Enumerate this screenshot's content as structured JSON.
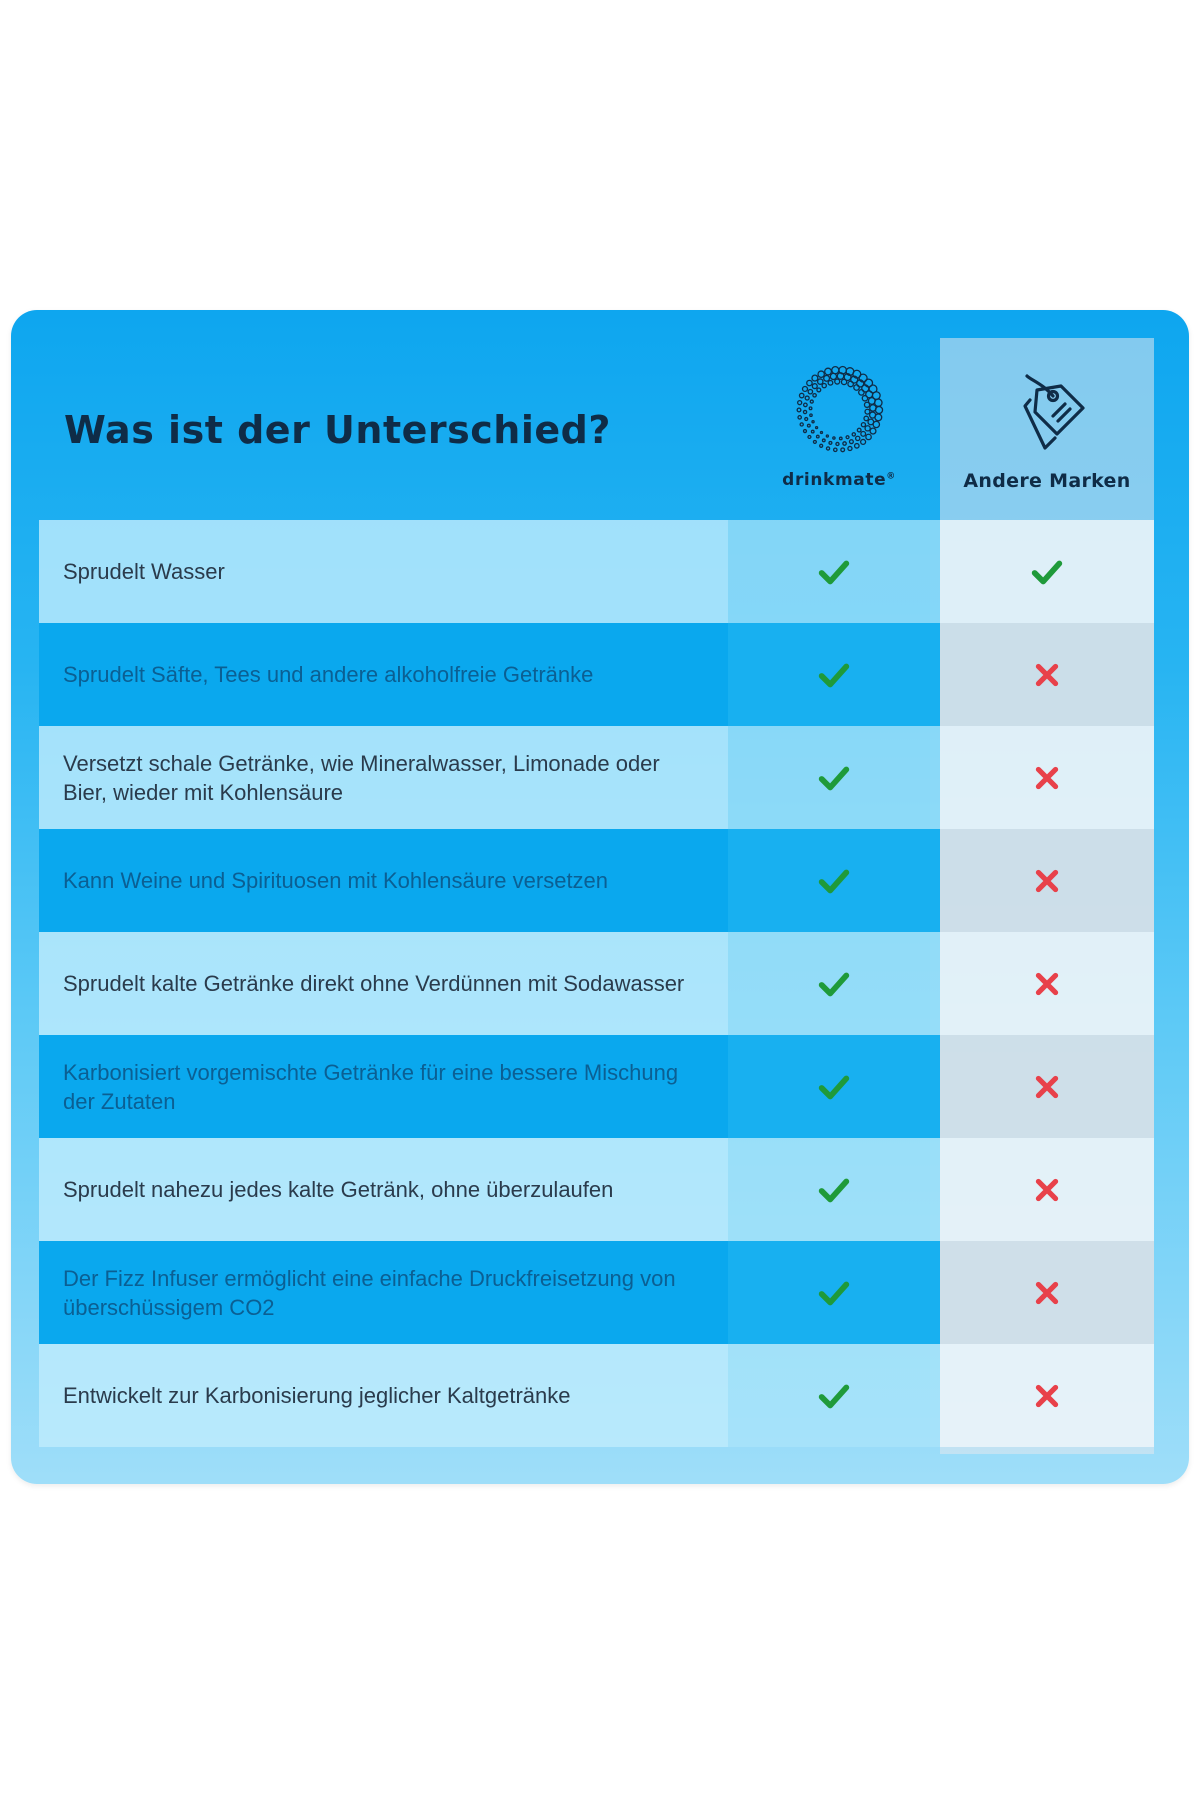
{
  "header": {
    "title": "Was ist der Unterschied?",
    "brand_name": "drinkmate",
    "brand_registered": "®",
    "other_brands_label": "Andere Marken",
    "brand_logo_icon": "drinkmate-bubble-ring-icon",
    "other_brands_icon": "price-tag-icon"
  },
  "colors": {
    "check": "#1f9a3a",
    "cross": "#e8414a",
    "title": "#0f2c47",
    "card_blue": "#0ea6ef"
  },
  "rows": [
    {
      "feature": "Sprudelt Wasser",
      "drinkmate": "check",
      "other": "check"
    },
    {
      "feature": "Sprudelt Säfte, Tees und andere alkoholfreie Getränke",
      "drinkmate": "check",
      "other": "cross"
    },
    {
      "feature": "Versetzt schale Getränke, wie Mineralwasser, Limonade oder Bier, wieder mit Kohlensäure",
      "drinkmate": "check",
      "other": "cross"
    },
    {
      "feature": "Kann Weine und Spirituosen mit Kohlensäure versetzen",
      "drinkmate": "check",
      "other": "cross"
    },
    {
      "feature": "Sprudelt kalte Getränke direkt ohne Verdünnen mit Sodawasser",
      "drinkmate": "check",
      "other": "cross"
    },
    {
      "feature": "Karbonisiert vorgemischte Getränke für eine bessere Mischung der Zutaten",
      "drinkmate": "check",
      "other": "cross"
    },
    {
      "feature": "Sprudelt nahezu jedes kalte Getränk, ohne überzulaufen",
      "drinkmate": "check",
      "other": "cross"
    },
    {
      "feature": "Der Fizz Infuser ermöglicht eine einfache Druckfreisetzung von überschüssigem CO2",
      "drinkmate": "check",
      "other": "cross"
    },
    {
      "feature": "Entwickelt zur Karbonisierung jeglicher Kaltgetränke",
      "drinkmate": "check",
      "other": "cross"
    }
  ]
}
